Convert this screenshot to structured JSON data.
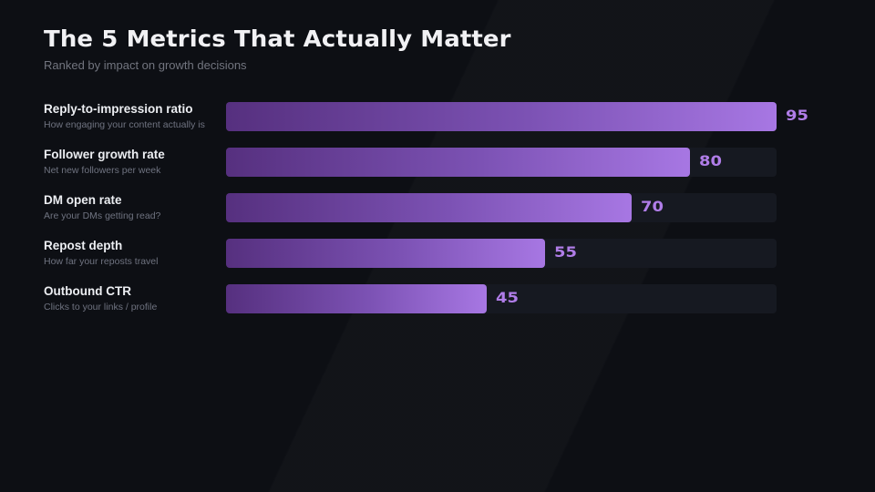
{
  "title": "The 5 Metrics That Actually Matter",
  "subtitle": "Ranked by impact on growth decisions",
  "colors": {
    "background": "#0d0f14",
    "bar_gradient_start": "#56307f",
    "bar_gradient_end": "#a777e3",
    "value_text": "#b07de8",
    "track": "#161921"
  },
  "chart_data": {
    "type": "bar",
    "orientation": "horizontal",
    "xlim": [
      0,
      100
    ],
    "grid": false,
    "categories": [
      "Reply-to-impression ratio",
      "Follower growth rate",
      "DM open rate",
      "Repost depth",
      "Outbound CTR"
    ],
    "descriptions": [
      "How engaging your content actually is",
      "Net new followers per week",
      "Are your DMs getting read?",
      "How far your reposts travel",
      "Clicks to your links / profile"
    ],
    "values": [
      95,
      80,
      70,
      55,
      45
    ],
    "value_labels": [
      "95",
      "80",
      "70",
      "55",
      "45"
    ]
  }
}
